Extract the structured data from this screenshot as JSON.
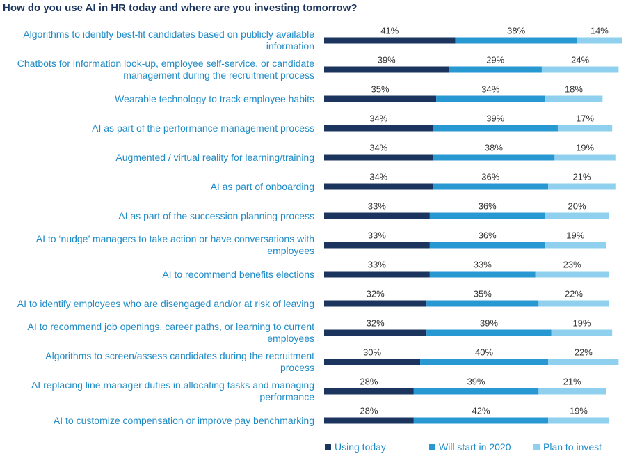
{
  "chart_data": {
    "type": "stacked-bar-horizontal",
    "title": "How do you use AI in HR today and where are you investing tomorrow?",
    "categories": [
      "Algorithms to identify best-fit candidates based on publicly available information",
      "Chatbots for information look-up, employee self-service, or candidate management during the recruitment process",
      "Wearable technology to track employee habits",
      "AI as part of the performance management process",
      "Augmented / virtual reality for learning/training",
      "AI as part of onboarding",
      "AI as part of the succession planning process",
      "AI to ‘nudge’ managers to take action or have conversations with employees",
      "AI to recommend benefits elections",
      "AI to identify employees who are disengaged and/or at risk of leaving",
      "AI to recommend job openings, career paths, or learning to current employees",
      "Algorithms to screen/assess candidates during the recruitment process",
      "AI replacing line manager duties in allocating tasks and managing performance",
      "AI to customize compensation or improve pay benchmarking"
    ],
    "series": [
      {
        "name": "Using today",
        "color": "#1c355e",
        "values": [
          41,
          39,
          35,
          34,
          34,
          34,
          33,
          33,
          33,
          32,
          32,
          30,
          28,
          28
        ],
        "value_labels": [
          "41%",
          "39%",
          "35%",
          "34%",
          "34%",
          "34%",
          "33%",
          "33%",
          "33%",
          "32%",
          "32%",
          "30%",
          "28%",
          "28%"
        ]
      },
      {
        "name": "Will start in 2020",
        "color": "#2898d3",
        "values": [
          38,
          29,
          34,
          39,
          38,
          36,
          36,
          36,
          33,
          35,
          39,
          40,
          39,
          42
        ],
        "value_labels": [
          "38%",
          "29%",
          "34%",
          "39%",
          "38%",
          "36%",
          "36%",
          "36%",
          "33%",
          "35%",
          "39%",
          "40%",
          "39%",
          "42%"
        ]
      },
      {
        "name": "Plan to invest",
        "color": "#8fd0ef",
        "values": [
          14,
          24,
          18,
          17,
          19,
          21,
          20,
          19,
          23,
          22,
          19,
          22,
          21,
          19
        ],
        "value_labels": [
          "14%",
          "24%",
          "18%",
          "17%",
          "19%",
          "21%",
          "20%",
          "19%",
          "23%",
          "22%",
          "19%",
          "22%",
          "21%",
          "19%"
        ]
      }
    ]
  }
}
